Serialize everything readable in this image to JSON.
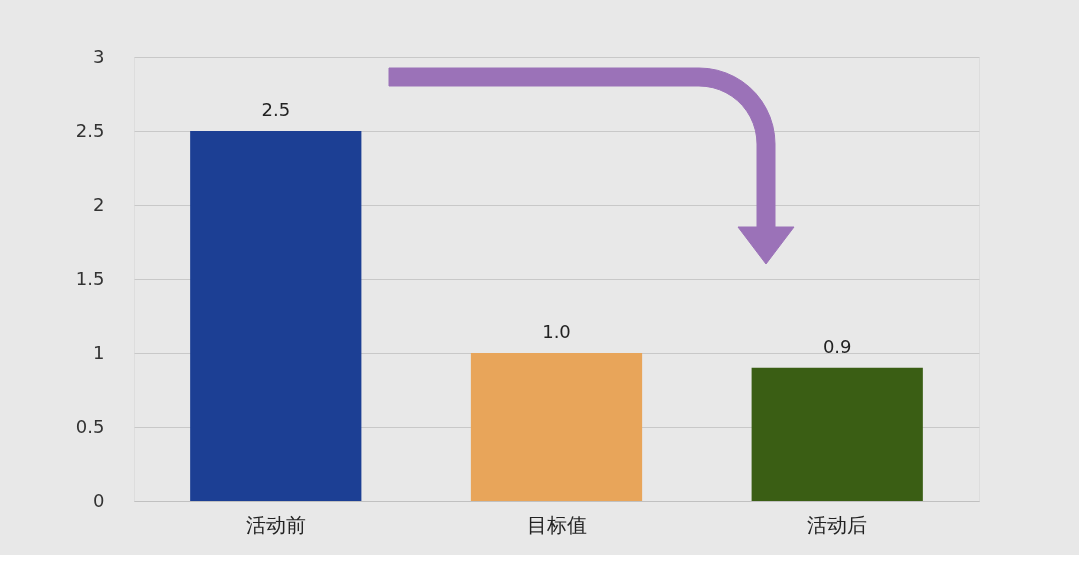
{
  "chart_data": {
    "type": "bar",
    "categories": [
      "活动前",
      "目标值",
      "活动后"
    ],
    "values": [
      2.5,
      1.0,
      0.9
    ],
    "colors": [
      "#1c3f94",
      "#e8a55a",
      "#3a5e14"
    ],
    "value_labels": [
      "2.5",
      "1.0",
      "0.9"
    ],
    "ylim": [
      0,
      3
    ],
    "yticks": [
      0,
      0.5,
      1,
      1.5,
      2,
      2.5,
      3
    ],
    "grid": "y",
    "legend": false
  }
}
